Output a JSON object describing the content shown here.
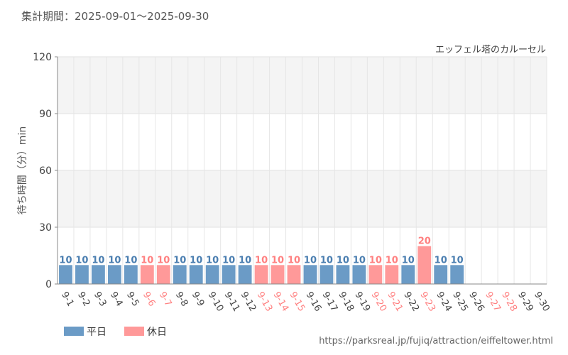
{
  "header": {
    "period": "集計期間：2025-09-01～2025-09-30"
  },
  "footer": {
    "url": "https://parksreal.jp/fujiq/attraction/eiffeltower.html"
  },
  "colors": {
    "weekday": "#6b9bc6",
    "holiday": "#ff9999",
    "weekday_label": "#4a7eb0",
    "holiday_label": "#ff8080"
  },
  "chart_data": {
    "type": "bar",
    "title": "エッフェル塔のカルーセル",
    "ylabel": "待ち時間（分）min",
    "xlabel": "",
    "ylim": [
      0,
      120
    ],
    "yticks": [
      0,
      30,
      60,
      90,
      120
    ],
    "grid": true,
    "legend_position": "bottom-left",
    "categories": [
      "9-1",
      "9-2",
      "9-3",
      "9-4",
      "9-5",
      "9-6",
      "9-7",
      "9-8",
      "9-9",
      "9-10",
      "9-11",
      "9-12",
      "9-13",
      "9-14",
      "9-15",
      "9-16",
      "9-17",
      "9-18",
      "9-19",
      "9-20",
      "9-21",
      "9-22",
      "9-23",
      "9-24",
      "9-25",
      "9-26",
      "9-27",
      "9-28",
      "9-29",
      "9-30"
    ],
    "values": [
      10,
      10,
      10,
      10,
      10,
      10,
      10,
      10,
      10,
      10,
      10,
      10,
      10,
      10,
      10,
      10,
      10,
      10,
      10,
      10,
      10,
      10,
      20,
      10,
      10,
      null,
      null,
      null,
      null,
      null
    ],
    "day_type": [
      "weekday",
      "weekday",
      "weekday",
      "weekday",
      "weekday",
      "holiday",
      "holiday",
      "weekday",
      "weekday",
      "weekday",
      "weekday",
      "weekday",
      "holiday",
      "holiday",
      "holiday",
      "weekday",
      "weekday",
      "weekday",
      "weekday",
      "holiday",
      "holiday",
      "weekday",
      "holiday",
      "weekday",
      "weekday",
      "weekday",
      "holiday",
      "holiday",
      "weekday",
      "weekday"
    ],
    "legend": [
      {
        "key": "weekday",
        "name": "平日"
      },
      {
        "key": "holiday",
        "name": "休日"
      }
    ]
  }
}
